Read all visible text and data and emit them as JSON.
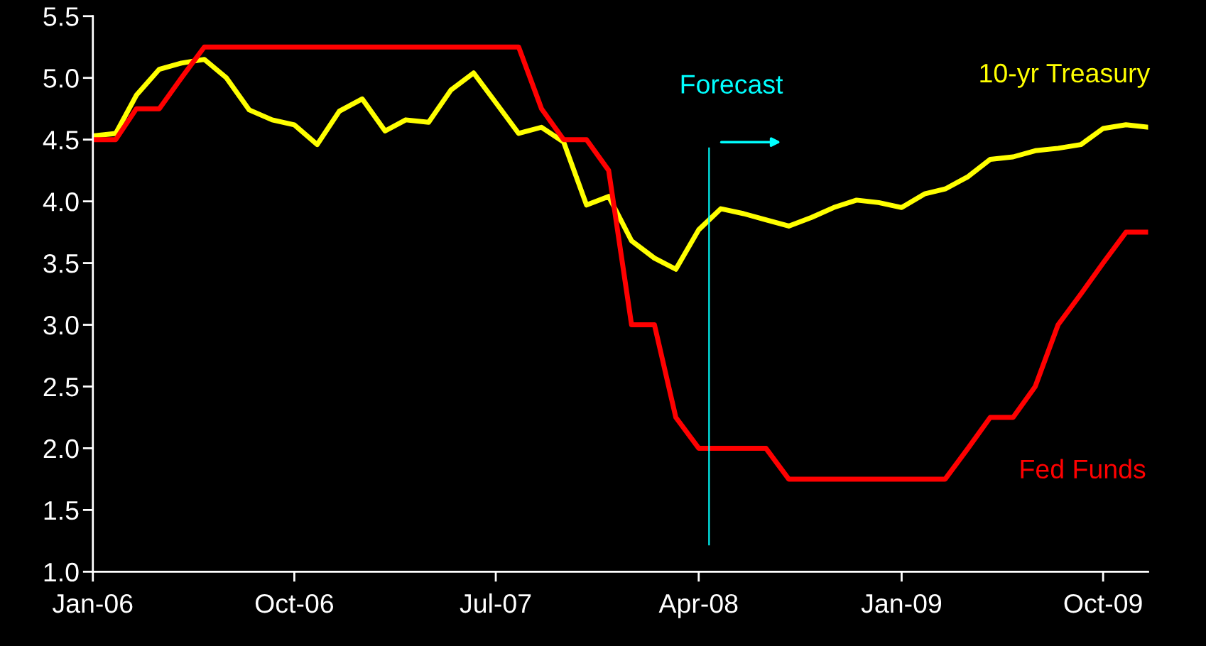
{
  "chart_data": {
    "type": "line",
    "x": [
      "2006-01",
      "2006-02",
      "2006-03",
      "2006-04",
      "2006-05",
      "2006-06",
      "2006-07",
      "2006-08",
      "2006-09",
      "2006-10",
      "2006-11",
      "2006-12",
      "2007-01",
      "2007-02",
      "2007-03",
      "2007-04",
      "2007-05",
      "2007-06",
      "2007-07",
      "2007-08",
      "2007-09",
      "2007-10",
      "2007-11",
      "2007-12",
      "2008-01",
      "2008-02",
      "2008-03",
      "2008-04",
      "2008-05",
      "2008-06",
      "2008-07",
      "2008-08",
      "2008-09",
      "2008-10",
      "2008-11",
      "2008-12",
      "2009-01",
      "2009-02",
      "2009-03",
      "2009-04",
      "2009-05",
      "2009-06",
      "2009-07",
      "2009-08",
      "2009-09",
      "2009-10",
      "2009-11",
      "2009-12"
    ],
    "series": [
      {
        "name": "10-yr Treasury",
        "color": "#ffff00",
        "values": [
          4.53,
          4.55,
          4.86,
          5.07,
          5.12,
          5.15,
          5.0,
          4.74,
          4.66,
          4.62,
          4.46,
          4.73,
          4.83,
          4.57,
          4.66,
          4.64,
          4.9,
          5.04,
          4.8,
          4.55,
          4.6,
          4.48,
          3.97,
          4.04,
          3.68,
          3.54,
          3.45,
          3.77,
          3.94,
          3.9,
          3.85,
          3.8,
          3.87,
          3.95,
          4.01,
          3.99,
          3.95,
          4.06,
          4.1,
          4.2,
          4.34,
          4.36,
          4.41,
          4.43,
          4.46,
          4.59,
          4.62,
          4.6
        ]
      },
      {
        "name": "Fed Funds",
        "color": "#ff0000",
        "values": [
          4.5,
          4.5,
          4.75,
          4.75,
          5.0,
          5.25,
          5.25,
          5.25,
          5.25,
          5.25,
          5.25,
          5.25,
          5.25,
          5.25,
          5.25,
          5.25,
          5.25,
          5.25,
          5.25,
          5.25,
          4.75,
          4.5,
          4.5,
          4.25,
          3.0,
          3.0,
          2.25,
          2.0,
          2.0,
          2.0,
          2.0,
          1.75,
          1.75,
          1.75,
          1.75,
          1.75,
          1.75,
          1.75,
          1.75,
          2.0,
          2.25,
          2.25,
          2.5,
          3.0,
          3.25,
          3.5,
          3.75,
          3.75
        ]
      }
    ],
    "xlim": [
      "2006-01",
      "2009-12"
    ],
    "xticks": [
      {
        "value": "2006-01",
        "label": "Jan-06"
      },
      {
        "value": "2006-10",
        "label": "Oct-06"
      },
      {
        "value": "2007-07",
        "label": "Jul-07"
      },
      {
        "value": "2008-04",
        "label": "Apr-08"
      },
      {
        "value": "2009-01",
        "label": "Jan-09"
      },
      {
        "value": "2009-10",
        "label": "Oct-09"
      }
    ],
    "ylim": [
      1.0,
      5.5
    ],
    "yticks": [
      {
        "value": 1.0,
        "label": "1.0"
      },
      {
        "value": 1.5,
        "label": "1.5"
      },
      {
        "value": 2.0,
        "label": "2.0"
      },
      {
        "value": 2.5,
        "label": "2.5"
      },
      {
        "value": 3.0,
        "label": "3.0"
      },
      {
        "value": 3.5,
        "label": "3.5"
      },
      {
        "value": 4.0,
        "label": "4.0"
      },
      {
        "value": 4.5,
        "label": "4.5"
      },
      {
        "value": 5.0,
        "label": "5.0"
      },
      {
        "value": 5.5,
        "label": "5.5"
      }
    ],
    "ref_lines": [
      {
        "axis": "x",
        "value": "2008-04-15",
        "label": "Forecast",
        "color": "#00ffff"
      }
    ],
    "grid": false,
    "legend": false,
    "marker": "none",
    "line_style": "solid"
  }
}
